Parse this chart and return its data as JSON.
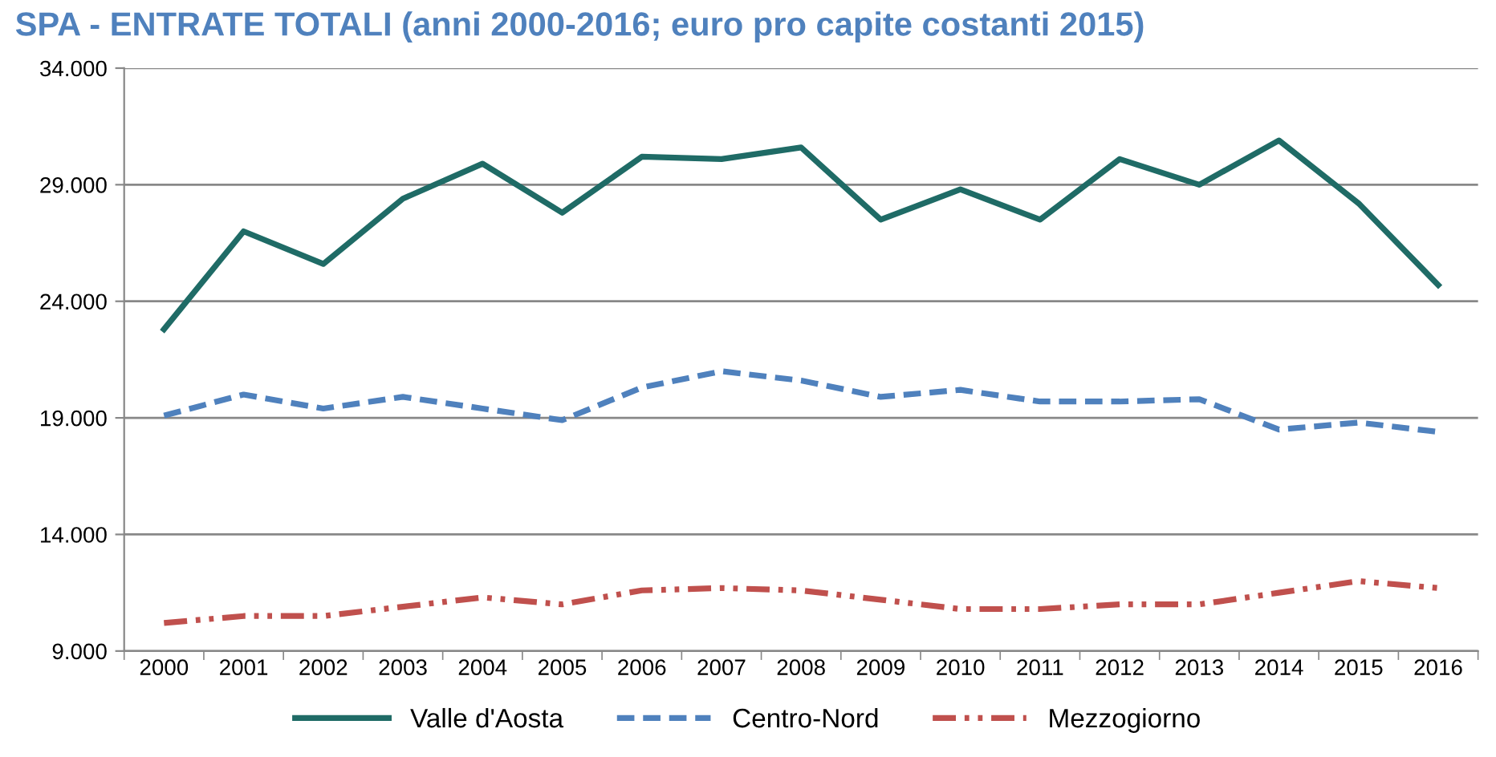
{
  "chart_data": {
    "type": "line",
    "title": "SPA - ENTRATE TOTALI (anni 2000-2016; euro pro capite costanti 2015)",
    "categories": [
      "2000",
      "2001",
      "2002",
      "2003",
      "2004",
      "2005",
      "2006",
      "2007",
      "2008",
      "2009",
      "2010",
      "2011",
      "2012",
      "2013",
      "2014",
      "2015",
      "2016"
    ],
    "series": [
      {
        "name": "Valle d'Aosta",
        "color": "#1f6b66",
        "line_style": "solid",
        "values": [
          22800,
          27000,
          25600,
          28400,
          29900,
          27800,
          30200,
          30100,
          30600,
          27500,
          28800,
          27500,
          30100,
          29000,
          30900,
          28200,
          24700
        ]
      },
      {
        "name": "Centro-Nord",
        "color": "#4f81bd",
        "line_style": "dashed",
        "values": [
          19100,
          20000,
          19400,
          19900,
          19400,
          18900,
          20300,
          21000,
          20600,
          19900,
          20200,
          19700,
          19700,
          19800,
          18500,
          18800,
          18400
        ]
      },
      {
        "name": "Mezzogiorno",
        "color": "#c0504d",
        "line_style": "dashdotdot",
        "values": [
          10200,
          10500,
          10500,
          10900,
          11300,
          11000,
          11600,
          11700,
          11600,
          11200,
          10800,
          10800,
          11000,
          11000,
          11500,
          12000,
          11700
        ]
      }
    ],
    "ylim": [
      9000,
      34000
    ],
    "yticks": [
      {
        "value": 9000,
        "label": "9.000"
      },
      {
        "value": 14000,
        "label": "14.000"
      },
      {
        "value": 19000,
        "label": "19.000"
      },
      {
        "value": 24000,
        "label": "24.000"
      },
      {
        "value": 29000,
        "label": "29.000"
      },
      {
        "value": 34000,
        "label": "34.000"
      }
    ],
    "grid": "y",
    "legend": "bottom"
  }
}
